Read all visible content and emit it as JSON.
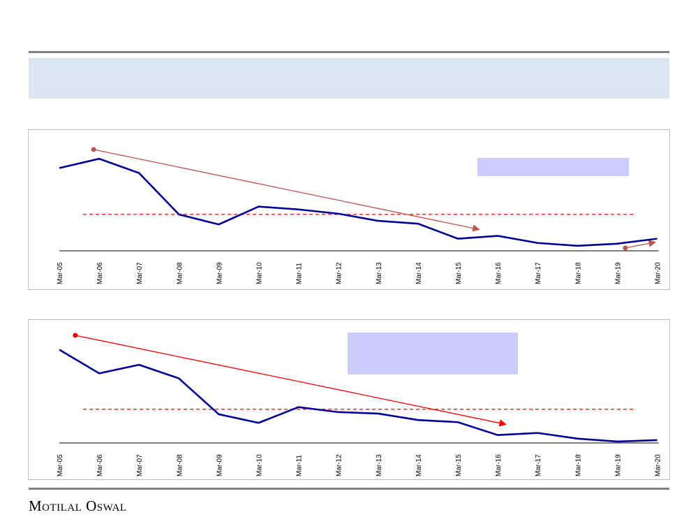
{
  "footer": {
    "brand": "Motilal Oswal"
  },
  "colors": {
    "line": "#000099",
    "avg": "#ff0000",
    "arrow1": "#c0504d",
    "arrow2": "#ff0000",
    "label_box": "#ccccff",
    "banner": "#dce6f2"
  },
  "chart_data": [
    {
      "type": "line",
      "categories": [
        "Mar-05",
        "Mar-06",
        "Mar-07",
        "Mar-08",
        "Mar-09",
        "Mar-10",
        "Mar-11",
        "Mar-12",
        "Mar-13",
        "Mar-14",
        "Mar-15",
        "Mar-16",
        "Mar-17",
        "Mar-18",
        "Mar-19",
        "Mar-20"
      ],
      "series": [
        {
          "name": "series",
          "values": [
            116,
            129,
            109,
            51,
            37,
            62,
            58,
            52,
            42,
            38,
            17,
            21,
            11,
            7,
            10,
            17
          ]
        }
      ],
      "average": 51,
      "ylim": [
        0,
        140
      ],
      "trend_arrows": [
        {
          "from": [
            0.86,
            142
          ],
          "to": [
            10.53,
            30
          ]
        },
        {
          "from": [
            14.2,
            4
          ],
          "to": [
            14.95,
            12
          ]
        }
      ],
      "grid": false
    },
    {
      "type": "line",
      "categories": [
        "Mar-05",
        "Mar-06",
        "Mar-07",
        "Mar-08",
        "Mar-09",
        "Mar-10",
        "Mar-11",
        "Mar-12",
        "Mar-13",
        "Mar-14",
        "Mar-15",
        "Mar-16",
        "Mar-17",
        "Mar-18",
        "Mar-19",
        "Mar-20"
      ],
      "series": [
        {
          "name": "series",
          "values": [
            130,
            97,
            109,
            90,
            40,
            28,
            50,
            43,
            41,
            32,
            29,
            11,
            14,
            6,
            2,
            4
          ]
        }
      ],
      "average": 47,
      "ylim": [
        0,
        150
      ],
      "trend_arrows": [
        {
          "from": [
            0.4,
            150
          ],
          "to": [
            11.2,
            26
          ]
        }
      ],
      "grid": false
    }
  ]
}
